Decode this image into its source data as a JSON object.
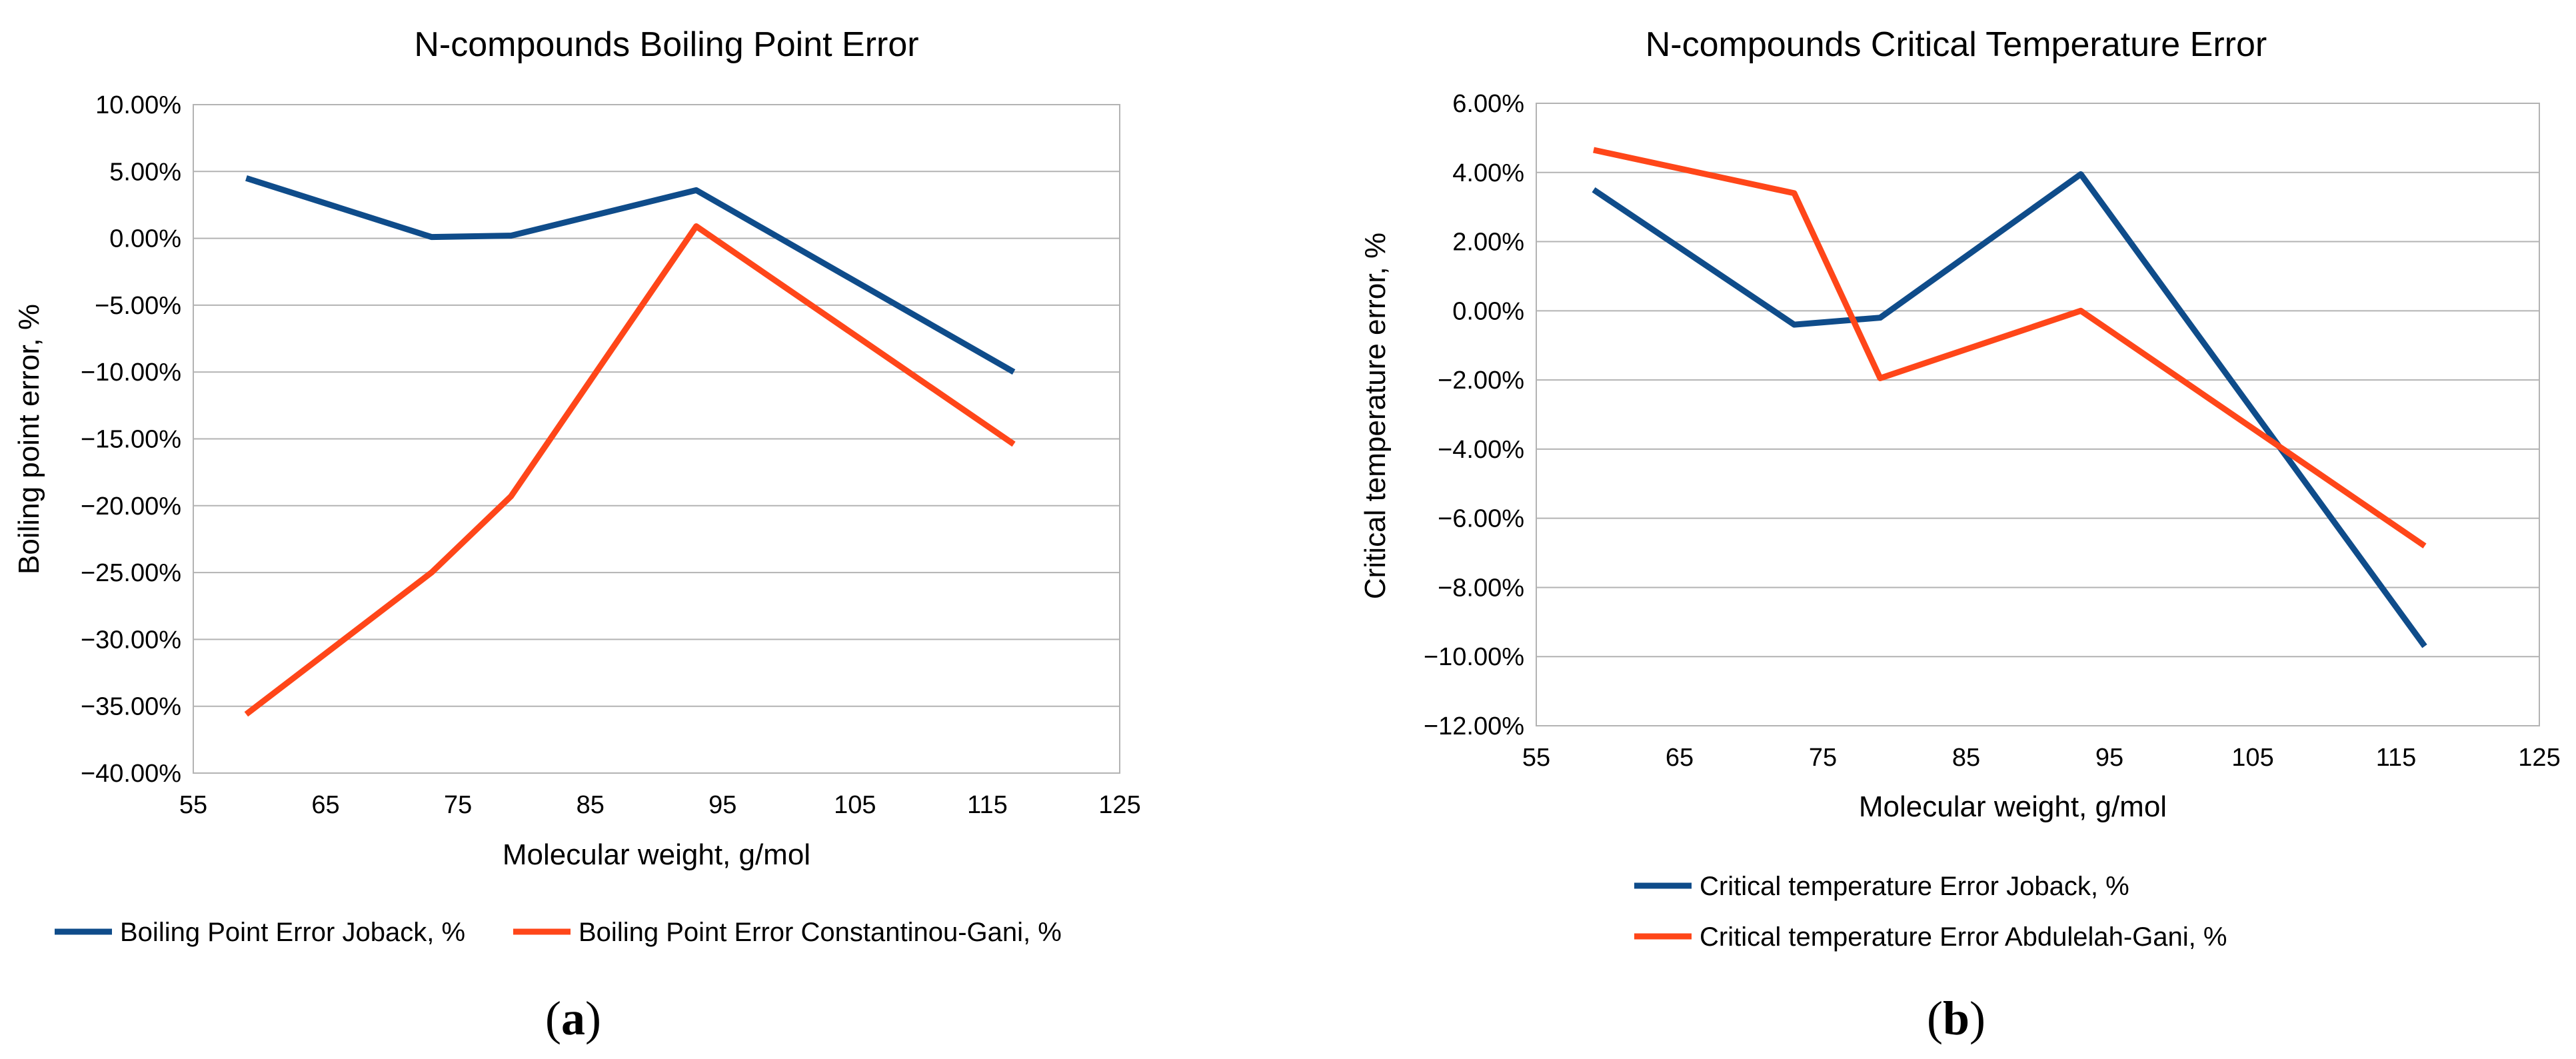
{
  "chart_data": [
    {
      "type": "line",
      "title": "N-compounds Boiling Point Error",
      "xlabel": "Molecular weight, g/mol",
      "ylabel": "Boiling point error, %",
      "xlim": [
        55,
        125
      ],
      "ylim": [
        -40,
        10
      ],
      "x_ticks": [
        "55",
        "65",
        "75",
        "85",
        "95",
        "105",
        "115",
        "125"
      ],
      "y_ticks": [
        "10.00%",
        "5.00%",
        "0.00%",
        "−5.00%",
        "−10.00%",
        "−15.00%",
        "−20.00%",
        "−25.00%",
        "−30.00%",
        "−35.00%",
        "−40.00%"
      ],
      "grid": true,
      "legend_position": "bottom",
      "panel_label": "a",
      "series": [
        {
          "name": "Boiling Point Error Joback, %",
          "color": "#0f4c8a",
          "points": [
            [
              59,
              4.5
            ],
            [
              73,
              0.1
            ],
            [
              79,
              0.2
            ],
            [
              93,
              3.6
            ],
            [
              117,
              -10.0
            ]
          ]
        },
        {
          "name": "Boiling Point Error Constantinou-Gani, %",
          "color": "#ff4619",
          "points": [
            [
              59,
              -35.6
            ],
            [
              73,
              -25.0
            ],
            [
              79,
              -19.3
            ],
            [
              93,
              0.9
            ],
            [
              117,
              -15.4
            ]
          ]
        }
      ]
    },
    {
      "type": "line",
      "title": "N-compounds Critical Temperature Error",
      "xlabel": "Molecular weight, g/mol",
      "ylabel": "Critical temperature error, %",
      "xlim": [
        55,
        125
      ],
      "ylim": [
        -12,
        6
      ],
      "x_ticks": [
        "55",
        "65",
        "75",
        "85",
        "95",
        "105",
        "115",
        "125"
      ],
      "y_ticks": [
        "6.00%",
        "4.00%",
        "2.00%",
        "0.00%",
        "−2.00%",
        "−4.00%",
        "−6.00%",
        "−8.00%",
        "−10.00%",
        "−12.00%"
      ],
      "grid": true,
      "legend_position": "bottom",
      "panel_label": "b",
      "series": [
        {
          "name": "Critical temperature Error Joback, %",
          "color": "#0f4c8a",
          "points": [
            [
              59,
              3.5
            ],
            [
              73,
              -0.4
            ],
            [
              79,
              -0.2
            ],
            [
              93,
              3.95
            ],
            [
              117,
              -9.7
            ]
          ]
        },
        {
          "name": "Critical temperature Error Abdulelah-Gani, %",
          "color": "#ff4619",
          "points": [
            [
              59,
              4.65
            ],
            [
              73,
              3.4
            ],
            [
              79,
              -1.95
            ],
            [
              93,
              0.0
            ],
            [
              117,
              -6.8
            ]
          ]
        }
      ]
    }
  ]
}
